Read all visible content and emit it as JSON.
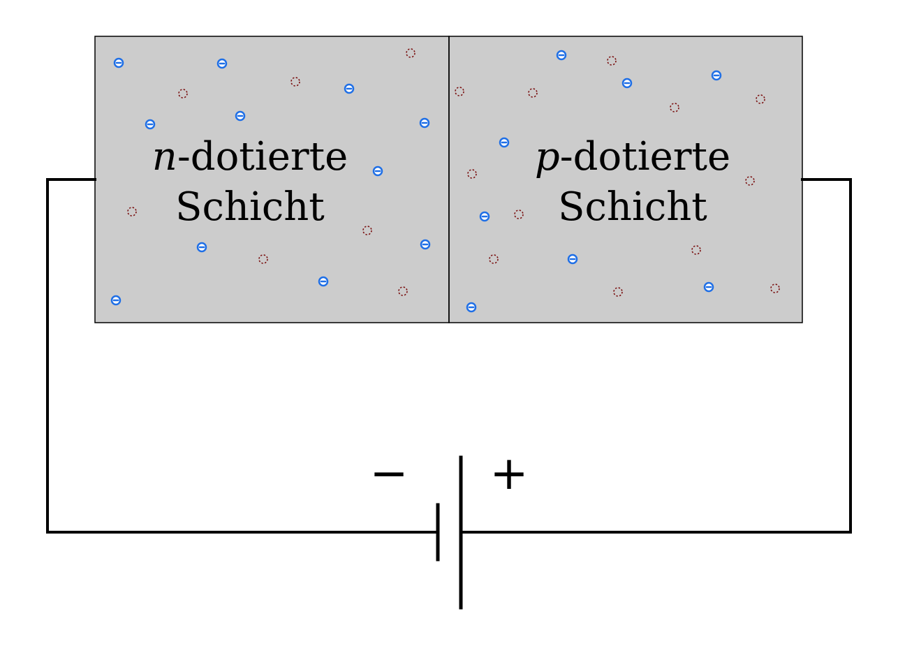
{
  "n_layer": {
    "var": "n",
    "word": "-dotierte",
    "line2": "Schicht"
  },
  "p_layer": {
    "var": "p",
    "word": "-dotierte",
    "line2": "Schicht"
  },
  "battery": {
    "minus": "−",
    "plus": "+"
  },
  "colors": {
    "layer_fill": "#cccccc",
    "electron": "#1f6fe6",
    "hole": "#7a1010",
    "wire": "#000000"
  },
  "carriers": {
    "electron_icon": "electron-icon",
    "hole_icon": "hole-icon"
  }
}
